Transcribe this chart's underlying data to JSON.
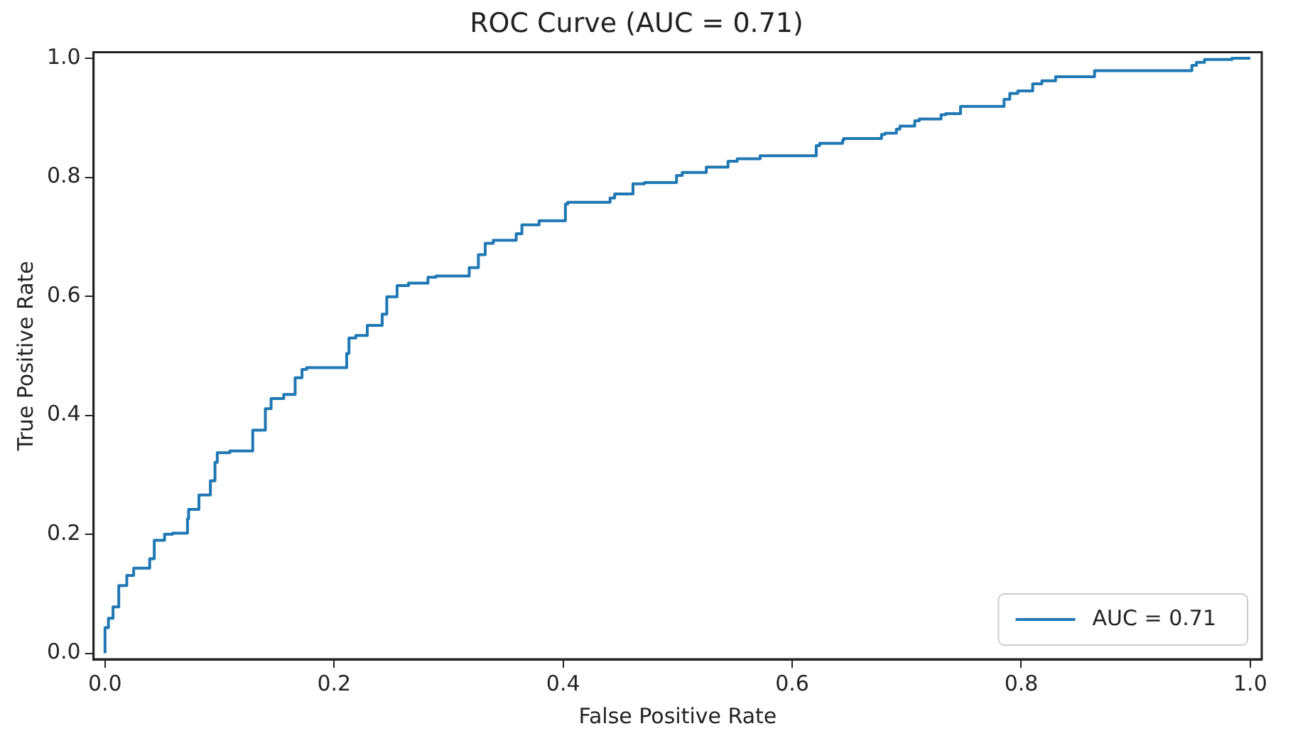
{
  "chart_data": {
    "type": "line",
    "title": "ROC Curve (AUC = 0.71)",
    "xlabel": "False Positive Rate",
    "ylabel": "True Positive Rate",
    "xlim": [
      -0.01,
      1.01
    ],
    "ylim": [
      -0.01,
      1.01
    ],
    "xticks": [
      {
        "value": 0,
        "label": "0.0"
      },
      {
        "value": 0.2,
        "label": "0.2"
      },
      {
        "value": 0.4,
        "label": "0.4"
      },
      {
        "value": 0.6,
        "label": "0.6"
      },
      {
        "value": 0.8,
        "label": "0.8"
      },
      {
        "value": 1,
        "label": "1.0"
      }
    ],
    "yticks": [
      {
        "value": 0,
        "label": "0.0"
      },
      {
        "value": 0.2,
        "label": "0.2"
      },
      {
        "value": 0.4,
        "label": "0.4"
      },
      {
        "value": 0.6,
        "label": "0.6"
      },
      {
        "value": 0.8,
        "label": "0.8"
      },
      {
        "value": 1,
        "label": "1.0"
      }
    ],
    "grid": false,
    "legend": "bottom right",
    "marker": "none",
    "line_style": "solid",
    "series": [
      {
        "name": "AUC = 0.71",
        "color": "#1f77b4",
        "type": "step",
        "x": [
          0,
          0.003,
          0.007,
          0.012,
          0.019,
          0.025,
          0.039,
          0.043,
          0.052,
          0.059,
          0.072,
          0.073,
          0.082,
          0.092,
          0.096,
          0.098,
          0.109,
          0.129,
          0.14,
          0.145,
          0.156,
          0.166,
          0.172,
          0.176,
          0.211,
          0.213,
          0.219,
          0.229,
          0.242,
          0.246,
          0.255,
          0.265,
          0.282,
          0.289,
          0.318,
          0.326,
          0.332,
          0.339,
          0.359,
          0.364,
          0.379,
          0.402,
          0.404,
          0.441,
          0.445,
          0.461,
          0.471,
          0.499,
          0.504,
          0.525,
          0.544,
          0.552,
          0.572,
          0.574,
          0.621,
          0.624,
          0.644,
          0.645,
          0.678,
          0.681,
          0.691,
          0.694,
          0.707,
          0.711,
          0.73,
          0.734,
          0.747,
          0.751,
          0.785,
          0.79,
          0.797,
          0.81,
          0.818,
          0.83,
          0.834,
          0.864,
          0.87,
          0.949,
          0.953,
          0.96,
          0.984,
          0.987,
          1
        ],
        "values": [
          0,
          0.043,
          0.059,
          0.078,
          0.114,
          0.131,
          0.143,
          0.159,
          0.19,
          0.2,
          0.202,
          0.226,
          0.242,
          0.266,
          0.29,
          0.321,
          0.337,
          0.34,
          0.375,
          0.411,
          0.428,
          0.435,
          0.463,
          0.477,
          0.48,
          0.504,
          0.53,
          0.534,
          0.551,
          0.57,
          0.599,
          0.618,
          0.622,
          0.632,
          0.634,
          0.648,
          0.67,
          0.689,
          0.694,
          0.705,
          0.72,
          0.727,
          0.755,
          0.758,
          0.765,
          0.772,
          0.789,
          0.791,
          0.803,
          0.808,
          0.817,
          0.827,
          0.831,
          0.836,
          0.836,
          0.853,
          0.857,
          0.862,
          0.865,
          0.872,
          0.874,
          0.881,
          0.886,
          0.895,
          0.898,
          0.905,
          0.907,
          0.919,
          0.919,
          0.931,
          0.941,
          0.945,
          0.957,
          0.962,
          0.969,
          0.969,
          0.979,
          0.979,
          0.988,
          0.993,
          0.998,
          1,
          1
        ]
      }
    ]
  }
}
